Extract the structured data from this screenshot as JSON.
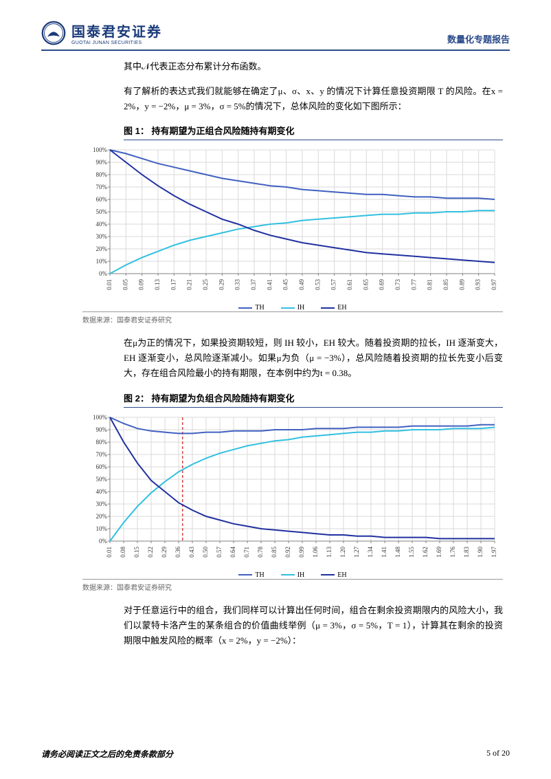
{
  "header": {
    "logo_cn": "国泰君安证券",
    "logo_en": "GUOTAI JUNAN SECURITIES",
    "right_label": "数量化专题报告"
  },
  "para1": "其中𝒩代表正态分布累计分布函数。",
  "para2": "有了解析的表达式我们就能够在确定了μ、σ、x、y 的情况下计算任意投资期限 T 的风险。在x = 2%，y = −2%，μ = 3%，σ = 5%的情况下，总体风险的变化如下图所示：",
  "fig1": {
    "title": "图 1：   持有期望为正组合风险随持有期变化",
    "source": "数据来源：国泰君安证券研究",
    "type": "line",
    "xlim": [
      0.01,
      0.97
    ],
    "ylim": [
      0,
      100
    ],
    "ytick_step": 10,
    "xticks": [
      0.01,
      0.05,
      0.09,
      0.13,
      0.17,
      0.21,
      0.25,
      0.29,
      0.33,
      0.37,
      0.41,
      0.45,
      0.49,
      0.53,
      0.57,
      0.61,
      0.65,
      0.69,
      0.73,
      0.77,
      0.81,
      0.85,
      0.89,
      0.93,
      0.97
    ],
    "grid_color": "#d9d9d9",
    "background_color": "#ffffff",
    "axis_color": "#808080",
    "tick_fontsize": 9,
    "tick_font_family": "Times New Roman",
    "series": [
      {
        "name": "TH",
        "color": "#4060c0",
        "width": 2,
        "y": [
          100,
          97,
          93,
          89,
          86,
          83,
          80,
          77,
          75,
          73,
          71,
          70,
          68,
          67,
          66,
          65,
          64,
          64,
          63,
          62,
          62,
          61,
          61,
          61,
          60
        ]
      },
      {
        "name": "IH",
        "color": "#30c0e0",
        "width": 2,
        "y": [
          0,
          7,
          13,
          18,
          23,
          27,
          30,
          33,
          36,
          38,
          40,
          41,
          43,
          44,
          45,
          46,
          47,
          48,
          48,
          49,
          49,
          50,
          50,
          51,
          51
        ]
      },
      {
        "name": "EH",
        "color": "#2030a0",
        "width": 2,
        "y": [
          100,
          90,
          80,
          71,
          63,
          56,
          50,
          44,
          40,
          35,
          31,
          28,
          25,
          23,
          21,
          19,
          17,
          16,
          15,
          14,
          13,
          12,
          11,
          10,
          9
        ]
      }
    ],
    "legend": [
      "TH",
      "IH",
      "EH"
    ],
    "legend_colors": [
      "#4060c0",
      "#30c0e0",
      "#2030a0"
    ]
  },
  "para3": "在μ为正的情况下，如果投资期较短，则 IH 较小，EH 较大。随着投资期的拉长，IH 逐渐变大，EH 逐渐变小，总风险逐渐减小。如果μ为负（μ = −3%），总风险随着投资期的拉长先变小后变大，存在组合风险最小的持有期限，在本例中约为t = 0.38。",
  "fig2": {
    "title": "图 2：   持有期望为负组合风险随持有期变化",
    "source": "数据来源：国泰君安证券研究",
    "type": "line",
    "xlim": [
      0.01,
      1.97
    ],
    "ylim": [
      0,
      100
    ],
    "ytick_step": 10,
    "xticks": [
      0.01,
      0.08,
      0.15,
      0.22,
      0.29,
      0.36,
      0.43,
      0.5,
      0.57,
      0.64,
      0.71,
      0.78,
      0.85,
      0.92,
      0.99,
      1.06,
      1.13,
      1.2,
      1.27,
      1.34,
      1.41,
      1.48,
      1.55,
      1.62,
      1.69,
      1.76,
      1.83,
      1.9,
      1.97
    ],
    "grid_color": "#d9d9d9",
    "background_color": "#ffffff",
    "axis_color": "#808080",
    "tick_fontsize": 9,
    "tick_font_family": "Times New Roman",
    "vline": {
      "x": 0.38,
      "color": "#d94040",
      "dash": "4,3",
      "width": 1.5
    },
    "series": [
      {
        "name": "TH",
        "color": "#4060c0",
        "width": 2,
        "y": [
          100,
          95,
          91,
          89,
          88,
          87,
          87,
          88,
          88,
          89,
          89,
          89,
          90,
          90,
          90,
          91,
          91,
          91,
          92,
          92,
          92,
          92,
          93,
          93,
          93,
          93,
          93,
          94,
          94
        ]
      },
      {
        "name": "IH",
        "color": "#30c0e0",
        "width": 2,
        "y": [
          0,
          15,
          28,
          39,
          48,
          56,
          62,
          67,
          71,
          74,
          77,
          79,
          81,
          82,
          84,
          85,
          86,
          87,
          88,
          88,
          89,
          89,
          90,
          90,
          90,
          91,
          91,
          91,
          92
        ]
      },
      {
        "name": "EH",
        "color": "#2030a0",
        "width": 2,
        "y": [
          100,
          80,
          63,
          49,
          40,
          31,
          25,
          20,
          17,
          14,
          12,
          10,
          9,
          8,
          7,
          6,
          5,
          5,
          4,
          4,
          3,
          3,
          3,
          3,
          2,
          2,
          2,
          2,
          2
        ]
      }
    ],
    "legend": [
      "TH",
      "IH",
      "EH"
    ],
    "legend_colors": [
      "#4060c0",
      "#30c0e0",
      "#2030a0"
    ]
  },
  "para4": "对于任意运行中的组合，我们同样可以计算出任何时间，组合在剩余投资期限内的风险大小，我们以蒙特卡洛产生的某条组合的价值曲线举例（μ = 3%，σ = 5%，T = 1），计算其在剩余的投资期限中触发风险的概率（x = 2%，y = −2%）：",
  "footer": {
    "left": "请务必阅读正文之后的免责条款部分",
    "right": "5 of 20"
  }
}
